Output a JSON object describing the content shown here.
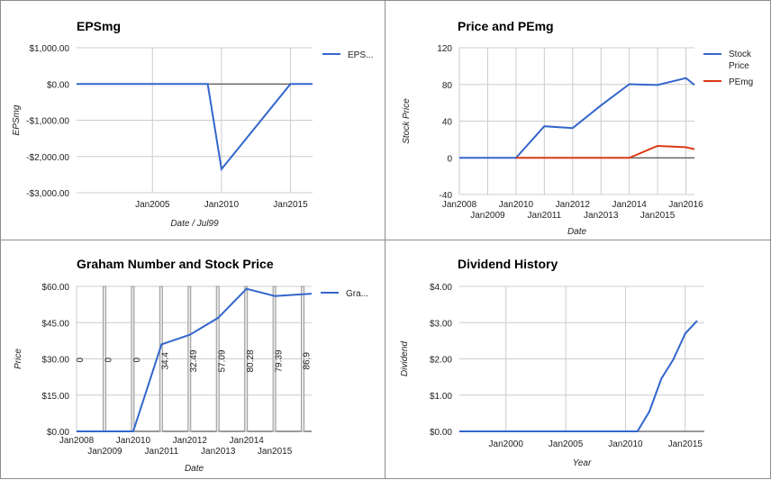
{
  "colors": {
    "blue": "#3366cc",
    "red": "#dc3912"
  },
  "chart_data": [
    {
      "type": "line",
      "title": "EPSmg",
      "xlabel": "Date / Jul99",
      "ylabel": "EPSmg",
      "x_domain": [
        1999.5,
        2016.6
      ],
      "ylim": [
        -3000,
        1000
      ],
      "y_ticks": [
        1000,
        0,
        -1000,
        -2000,
        -3000
      ],
      "y_tick_labels": [
        "$1,000.00",
        "$0.00",
        "-$1,000.00",
        "-$2,000.00",
        "-$3,000.00"
      ],
      "x_ticks": [
        2005,
        2010,
        2015
      ],
      "x_tick_labels": [
        "Jan2005",
        "Jan2010",
        "Jan2015"
      ],
      "legend_position": "right",
      "series": [
        {
          "name": "EPS...",
          "color": "#3366cc",
          "x": [
            1999.5,
            2009.0,
            2010.0,
            2015.0,
            2016.6
          ],
          "values": [
            0,
            0,
            -2350,
            0,
            0
          ]
        }
      ]
    },
    {
      "type": "line",
      "title": "Price and PEmg",
      "xlabel": "Date",
      "ylabel": "Stock Price",
      "x_domain": [
        2008,
        2016.3
      ],
      "ylim": [
        -40,
        120
      ],
      "y_ticks": [
        120,
        80,
        40,
        0,
        -40
      ],
      "y_tick_labels": [
        "120",
        "80",
        "40",
        "0",
        "-40"
      ],
      "x_ticks": [
        2008,
        2009,
        2010,
        2011,
        2012,
        2013,
        2014,
        2015,
        2016
      ],
      "x_tick_labels": [
        "Jan2008",
        "Jan2009",
        "Jan2010",
        "Jan2011",
        "Jan2012",
        "Jan2013",
        "Jan2014",
        "Jan2015",
        "Jan2016"
      ],
      "legend_position": "right",
      "series": [
        {
          "name": "Stock Price",
          "color": "#3366cc",
          "x": [
            2008,
            2009,
            2010,
            2011,
            2012,
            2013,
            2014,
            2015,
            2016,
            2016.3
          ],
          "values": [
            0,
            0,
            0,
            34.4,
            32.49,
            57.09,
            80.28,
            79.39,
            86.9,
            79.5
          ]
        },
        {
          "name": "PEmg",
          "color": "#dc3912",
          "x": [
            2010,
            2011,
            2012,
            2013,
            2014,
            2015,
            2016,
            2016.3
          ],
          "values": [
            0,
            0,
            0,
            0,
            0,
            13,
            11.5,
            9.5
          ]
        }
      ]
    },
    {
      "type": "line",
      "title": "Graham Number and Stock Price",
      "xlabel": "Date",
      "ylabel": "Price",
      "x_domain": [
        2008,
        2016.3
      ],
      "ylim": [
        0,
        60
      ],
      "y_ticks": [
        60,
        45,
        30,
        15,
        0
      ],
      "y_tick_labels": [
        "$60.00",
        "$45.00",
        "$30.00",
        "$15.00",
        "$0.00"
      ],
      "x_ticks": [
        2008,
        2009,
        2010,
        2011,
        2012,
        2013,
        2014,
        2015
      ],
      "x_tick_labels": [
        "Jan2008",
        "Jan2009",
        "Jan2010",
        "Jan2011",
        "Jan2012",
        "Jan2013",
        "Jan2014",
        "Jan2015"
      ],
      "legend_position": "right",
      "series": [
        {
          "name": "Gra...",
          "color": "#3366cc",
          "x": [
            2008,
            2009,
            2010,
            2011,
            2012,
            2013,
            2014,
            2015,
            2016.3
          ],
          "values": [
            0,
            0,
            0,
            36,
            40,
            47,
            59,
            56,
            57
          ]
        }
      ],
      "price_markers": {
        "x": [
          2009,
          2010,
          2011,
          2012,
          2013,
          2014,
          2015,
          2016
        ],
        "labels": [
          "0",
          "0",
          "0",
          "34.4",
          "32.49",
          "57.09",
          "80.28",
          "79.39",
          "86.9"
        ],
        "label_x": [
          2008.1,
          2009.1,
          2010.1,
          2011.1,
          2012.1,
          2013.1,
          2014.1,
          2015.1,
          2016.1
        ]
      }
    },
    {
      "type": "line",
      "title": "Dividend History",
      "xlabel": "Year",
      "ylabel": "Dividend",
      "x_domain": [
        1996.1,
        2016.6
      ],
      "ylim": [
        0,
        4
      ],
      "y_ticks": [
        4,
        3,
        2,
        1,
        0
      ],
      "y_tick_labels": [
        "$4.00",
        "$3.00",
        "$2.00",
        "$1.00",
        "$0.00"
      ],
      "x_ticks": [
        2000,
        2005,
        2010,
        2015
      ],
      "x_tick_labels": [
        "Jan2000",
        "Jan2005",
        "Jan2010",
        "Jan2015"
      ],
      "series": [
        {
          "name": "",
          "color": "#3366cc",
          "x": [
            1996.1,
            2011.0,
            2012.0,
            2013.0,
            2014.0,
            2015.0,
            2016.0
          ],
          "values": [
            0,
            0,
            0.55,
            1.45,
            1.98,
            2.7,
            3.05
          ]
        }
      ]
    }
  ]
}
